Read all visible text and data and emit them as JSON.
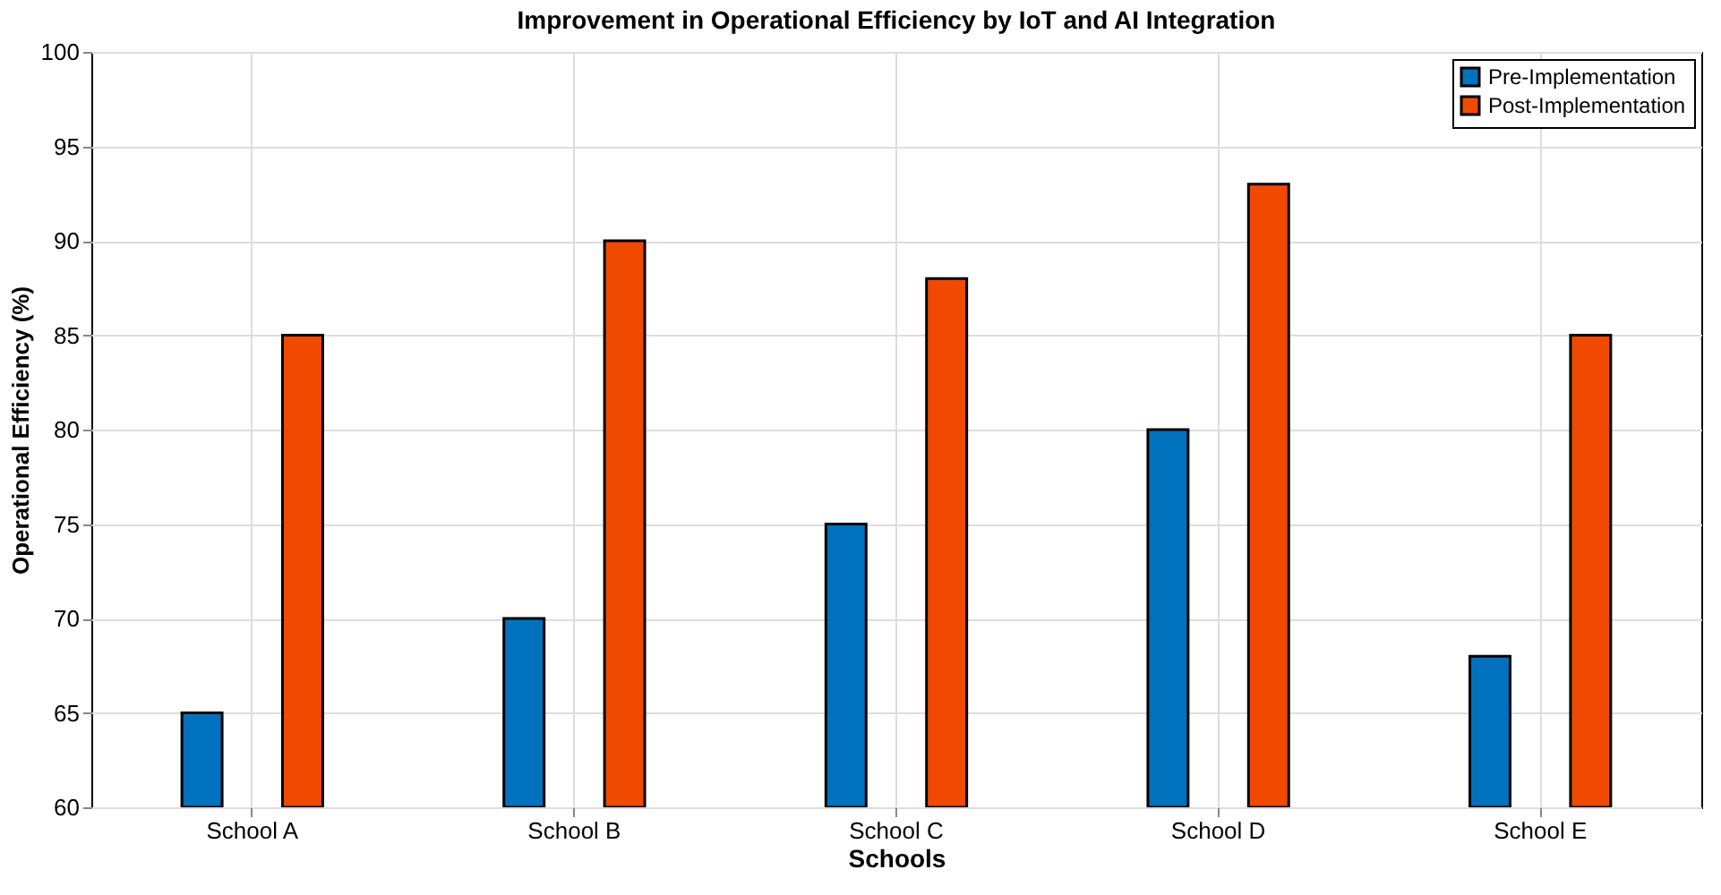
{
  "chart_data": {
    "type": "bar",
    "title": "Improvement in Operational Efficiency by IoT and AI Integration",
    "xlabel": "Schools",
    "ylabel": "Operational Efficiency (%)",
    "categories": [
      "School A",
      "School B",
      "School C",
      "School D",
      "School E"
    ],
    "series": [
      {
        "name": "Pre-Implementation",
        "color": "#0072bd",
        "values": [
          65,
          70,
          75,
          80,
          68
        ]
      },
      {
        "name": "Post-Implementation",
        "color": "#f04a00",
        "values": [
          85,
          90,
          88,
          93,
          85
        ]
      }
    ],
    "ylim": [
      60,
      100
    ],
    "yticks": [
      60,
      65,
      70,
      75,
      80,
      85,
      90,
      95,
      100
    ],
    "grid": true,
    "legend": "top right"
  }
}
